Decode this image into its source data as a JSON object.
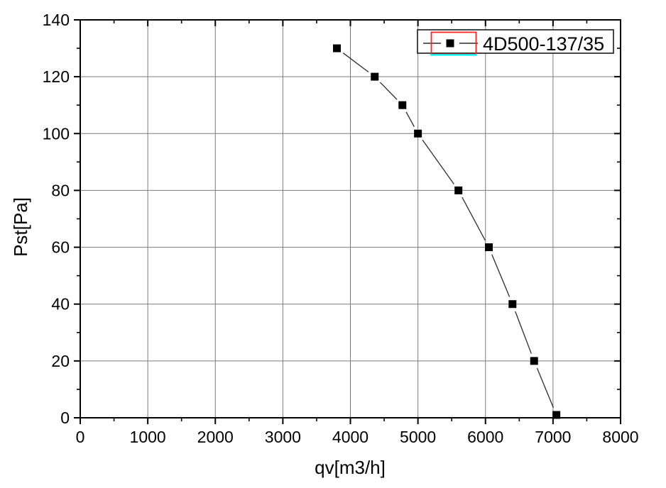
{
  "chart_data": {
    "type": "line",
    "title": "",
    "xlabel": "qv[m3/h]",
    "ylabel": "Pst[Pa]",
    "xlim": [
      0,
      8000
    ],
    "ylim": [
      0,
      140
    ],
    "x_major_step": 1000,
    "x_minor_step": 500,
    "y_major_step": 20,
    "y_minor_step": 10,
    "x_tick_labels": [
      "0",
      "1000",
      "2000",
      "3000",
      "4000",
      "5000",
      "6000",
      "7000",
      "8000"
    ],
    "y_tick_labels": [
      "0",
      "20",
      "40",
      "60",
      "80",
      "100",
      "120",
      "140"
    ],
    "grid": true,
    "legend_position": "top-right",
    "series": [
      {
        "name": "4D500-137/35",
        "marker": "filled-square",
        "line_style": "solid",
        "selected_in_editor": true,
        "points": [
          [
            3800,
            130
          ],
          [
            4360,
            120
          ],
          [
            4770,
            110
          ],
          [
            5000,
            100
          ],
          [
            5600,
            80
          ],
          [
            6050,
            60
          ],
          [
            6400,
            40
          ],
          [
            6720,
            20
          ],
          [
            7050,
            1
          ]
        ]
      }
    ]
  },
  "colors": {
    "background": "#ffffff",
    "frame": "#000000",
    "grid": "#7d7d7d",
    "curve": "#2b2b2b",
    "marker": "#000000",
    "text": "#000000",
    "legend_border": "#1a1a1a",
    "selection_box": "#ff2020",
    "selection_underline": "#00ffff"
  }
}
